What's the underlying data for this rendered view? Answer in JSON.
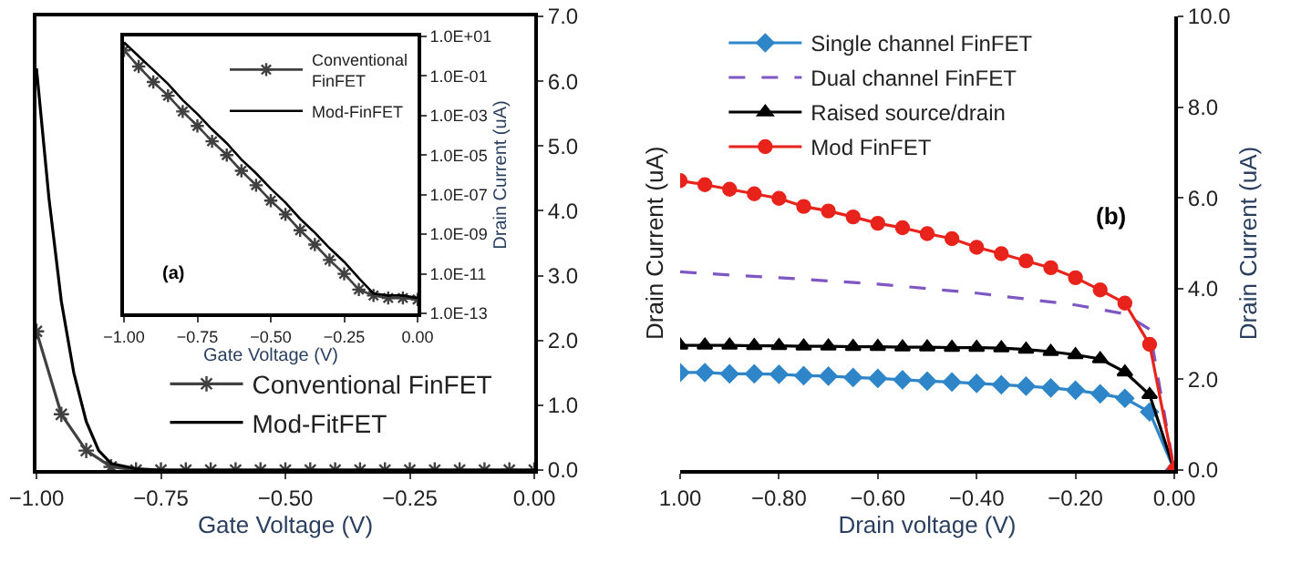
{
  "chart_data": [
    {
      "type": "line",
      "xlabel": "Gate Voltage (V)",
      "xlim": [
        -1,
        0
      ],
      "xticks": [
        {
          "value": -1,
          "label": "−1.00"
        },
        {
          "value": -0.75,
          "label": "−0.75"
        },
        {
          "value": -0.5,
          "label": "−0.50"
        },
        {
          "value": -0.25,
          "label": "−0.25"
        },
        {
          "value": 0,
          "label": "0.00"
        }
      ],
      "ylim": [
        0,
        7
      ],
      "yticks": [
        {
          "value": 0,
          "label": "0.0"
        },
        {
          "value": 1,
          "label": "1.0"
        },
        {
          "value": 2,
          "label": "2.0"
        },
        {
          "value": 3,
          "label": "3.0"
        },
        {
          "value": 4,
          "label": "4.0"
        },
        {
          "value": 5,
          "label": "5.0"
        },
        {
          "value": 6,
          "label": "6.0"
        },
        {
          "value": 7,
          "label": "7.0"
        }
      ],
      "legend": "bottom",
      "series": [
        {
          "name": "Conventional FinFET",
          "color": "#404040",
          "marker": "cross",
          "x": [
            -1,
            -0.95,
            -0.9,
            -0.85,
            -0.8,
            -0.75,
            -0.7,
            -0.65,
            -0.6,
            -0.55,
            -0.5,
            -0.45,
            -0.4,
            -0.35,
            -0.3,
            -0.25,
            -0.2,
            -0.15,
            -0.1,
            -0.05,
            0
          ],
          "values": [
            2.14,
            0.86,
            0.3,
            0.05,
            0,
            0,
            0,
            0,
            0,
            0,
            0,
            0,
            0,
            0,
            0,
            0,
            0,
            0,
            0,
            0,
            0
          ]
        },
        {
          "name": "Mod-FitFET",
          "color": "#000000",
          "marker": "none",
          "x": [
            -1,
            -0.975,
            -0.95,
            -0.925,
            -0.9,
            -0.875,
            -0.85,
            -0.8,
            -0.75,
            0
          ],
          "values": [
            6.2,
            4.2,
            2.6,
            1.5,
            0.75,
            0.3,
            0.1,
            0.02,
            0,
            0
          ]
        }
      ]
    },
    {
      "type": "line",
      "xlabel": "Gate Voltage (V)",
      "ylabel": "Drain Current (uA)",
      "log": "y",
      "xlim": [
        -1,
        0
      ],
      "xticks": [
        {
          "value": -1,
          "label": "−1.00"
        },
        {
          "value": -0.75,
          "label": "−0.75"
        },
        {
          "value": -0.5,
          "label": "−0.50"
        },
        {
          "value": -0.25,
          "label": "−0.25"
        },
        {
          "value": 0,
          "label": "0.00"
        }
      ],
      "ylim": [
        1e-13,
        10
      ],
      "yticks": [
        {
          "value": 10,
          "label": "1.0E+01"
        },
        {
          "value": 0.1,
          "label": "1.0E-01"
        },
        {
          "value": 0.001,
          "label": "1.0E-03"
        },
        {
          "value": 1e-05,
          "label": "1.0E-05"
        },
        {
          "value": 1e-07,
          "label": "1.0E-07"
        },
        {
          "value": 1e-09,
          "label": "1.0E-09"
        },
        {
          "value": 1e-11,
          "label": "1.0E-11"
        },
        {
          "value": 1e-13,
          "label": "1.0E-13"
        }
      ],
      "legend": "top right",
      "annotations": [
        "(a)"
      ],
      "series": [
        {
          "name": "Conventional\nFinFET",
          "color": "#404040",
          "marker": "cross",
          "x": [
            -1,
            -0.95,
            -0.9,
            -0.85,
            -0.8,
            -0.75,
            -0.7,
            -0.65,
            -0.6,
            -0.55,
            -0.5,
            -0.45,
            -0.4,
            -0.35,
            -0.3,
            -0.25,
            -0.2,
            -0.15,
            -0.1,
            -0.05,
            0
          ],
          "values": [
            2,
            0.3,
            0.05,
            0.01,
            0.0016,
            0.0003,
            5e-05,
            1e-05,
            1.6e-06,
            3e-07,
            5e-08,
            1e-08,
            1.6e-09,
            3e-10,
            5e-11,
            1e-11,
            1.6e-12,
            8e-13,
            6e-13,
            6e-13,
            5e-13
          ]
        },
        {
          "name": "Mod-FinFET",
          "color": "#000000",
          "marker": "none",
          "x": [
            -1,
            -0.95,
            -0.9,
            -0.85,
            -0.8,
            -0.75,
            -0.7,
            -0.65,
            -0.6,
            -0.55,
            -0.5,
            -0.45,
            -0.4,
            -0.35,
            -0.3,
            -0.25,
            -0.2,
            -0.15,
            -0.1,
            -0.05,
            0
          ],
          "values": [
            5,
            1,
            0.2,
            0.04,
            0.006,
            0.0012,
            0.0002,
            4e-05,
            6e-06,
            1.2e-06,
            2e-07,
            4e-08,
            6e-09,
            1.2e-09,
            2e-10,
            4e-11,
            6e-12,
            1e-12,
            8e-13,
            8e-13,
            6e-13
          ]
        }
      ]
    },
    {
      "type": "line",
      "xlabel": "Drain voltage (V)",
      "ylabel": "Drain Current (uA)",
      "y2label": "Drain Current (uA)",
      "xlim": [
        -1,
        0
      ],
      "xticks": [
        {
          "value": -1,
          "label": "1.00"
        },
        {
          "value": -0.8,
          "label": "−0.80"
        },
        {
          "value": -0.6,
          "label": "−0.60"
        },
        {
          "value": -0.4,
          "label": "−0.40"
        },
        {
          "value": -0.2,
          "label": "−0.20"
        },
        {
          "value": 0,
          "label": "0.00"
        }
      ],
      "ylim": [
        0,
        10
      ],
      "yticks": [
        {
          "value": 0,
          "label": "0.0"
        },
        {
          "value": 2,
          "label": "2.0"
        },
        {
          "value": 4,
          "label": "4.0"
        },
        {
          "value": 6,
          "label": "6.0"
        },
        {
          "value": 8,
          "label": "8.0"
        },
        {
          "value": 10,
          "label": "10.0"
        }
      ],
      "legend": "top left",
      "annotations": [
        "(b)"
      ],
      "series": [
        {
          "name": "Single channel FinFET",
          "color": "#2e86c9",
          "marker": "diamond",
          "x": [
            -1,
            -0.95,
            -0.9,
            -0.85,
            -0.8,
            -0.75,
            -0.7,
            -0.65,
            -0.6,
            -0.55,
            -0.5,
            -0.45,
            -0.4,
            -0.35,
            -0.3,
            -0.25,
            -0.2,
            -0.15,
            -0.1,
            -0.05,
            0
          ],
          "values": [
            2.15,
            2.15,
            2.12,
            2.12,
            2.11,
            2.08,
            2.07,
            2.04,
            2.02,
            1.99,
            1.96,
            1.94,
            1.91,
            1.88,
            1.85,
            1.81,
            1.76,
            1.68,
            1.58,
            1.28,
            0
          ]
        },
        {
          "name": "Dual channel FinFET",
          "color": "#7e57c2",
          "marker": "none",
          "line_style": "dashed",
          "x": [
            -1,
            -0.9,
            -0.8,
            -0.7,
            -0.6,
            -0.5,
            -0.4,
            -0.3,
            -0.2,
            -0.1,
            -0.05,
            0
          ],
          "values": [
            4.37,
            4.3,
            4.24,
            4.17,
            4.1,
            4.0,
            3.9,
            3.77,
            3.64,
            3.44,
            3.1,
            0
          ]
        },
        {
          "name": "Raised source/drain",
          "color": "#000000",
          "marker": "triangle",
          "x": [
            -1,
            -0.95,
            -0.9,
            -0.85,
            -0.8,
            -0.75,
            -0.7,
            -0.65,
            -0.6,
            -0.55,
            -0.5,
            -0.45,
            -0.4,
            -0.35,
            -0.3,
            -0.25,
            -0.2,
            -0.15,
            -0.1,
            -0.05,
            0
          ],
          "values": [
            2.75,
            2.75,
            2.75,
            2.74,
            2.74,
            2.73,
            2.73,
            2.72,
            2.72,
            2.71,
            2.71,
            2.7,
            2.7,
            2.69,
            2.66,
            2.61,
            2.54,
            2.45,
            2.16,
            1.66,
            0
          ]
        },
        {
          "name": "Mod FinFET",
          "color": "#e8231b",
          "marker": "circle",
          "x": [
            -1,
            -0.95,
            -0.9,
            -0.85,
            -0.8,
            -0.75,
            -0.7,
            -0.65,
            -0.6,
            -0.55,
            -0.5,
            -0.45,
            -0.4,
            -0.35,
            -0.3,
            -0.25,
            -0.2,
            -0.15,
            -0.1,
            -0.05,
            0
          ],
          "values": [
            6.38,
            6.29,
            6.19,
            6.09,
            5.99,
            5.81,
            5.71,
            5.58,
            5.44,
            5.34,
            5.21,
            5.1,
            4.91,
            4.77,
            4.61,
            4.46,
            4.24,
            3.97,
            3.68,
            2.77,
            0
          ]
        }
      ]
    }
  ]
}
